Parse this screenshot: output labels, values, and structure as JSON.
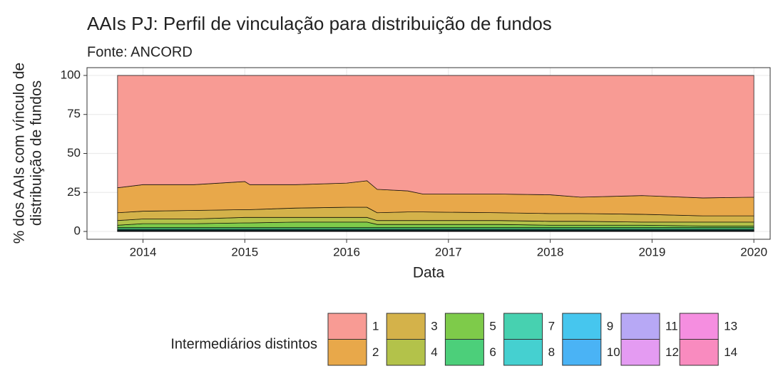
{
  "chart_data": {
    "type": "stacked_area",
    "title": "AAIs PJ: Perfil de vinculação para distribuição de fundos",
    "subtitle": "Fonte: ANCORD",
    "xlabel": "Data",
    "ylabel": [
      "% dos AAIs com vínculo de",
      "distribuição de fundos"
    ],
    "legend_title": "Intermediários distintos",
    "x": [
      2013.75,
      2014.0,
      2014.5,
      2015.0,
      2015.05,
      2015.5,
      2016.0,
      2016.2,
      2016.3,
      2016.6,
      2016.75,
      2017.5,
      2018.0,
      2018.3,
      2018.9,
      2019.5,
      2020.0
    ],
    "xlim": [
      2013.45,
      2020.16
    ],
    "xticks": [
      2014,
      2015,
      2016,
      2017,
      2018,
      2019,
      2020
    ],
    "ylim": [
      -5,
      105
    ],
    "yticks": [
      0,
      25,
      50,
      75,
      100
    ],
    "grid": true,
    "legend": "bottom",
    "series": [
      {
        "name": "1",
        "color": "#f89b94",
        "values": [
          72,
          70,
          70,
          68,
          70,
          70,
          69,
          67.5,
          73,
          74,
          76,
          76,
          76.5,
          78,
          77,
          78.5,
          78
        ]
      },
      {
        "name": "2",
        "color": "#e8a84a",
        "values": [
          16,
          17,
          16.5,
          18,
          16,
          15,
          15.5,
          17,
          15,
          13.5,
          11.5,
          12,
          12,
          10.5,
          12,
          11.5,
          12
        ]
      },
      {
        "name": "3",
        "color": "#d4b24a",
        "values": [
          5,
          5,
          5.5,
          5,
          5,
          6,
          6.5,
          6.5,
          5,
          5.5,
          5.5,
          5,
          5,
          5,
          5,
          4,
          4
        ]
      },
      {
        "name": "4",
        "color": "#b3c24a",
        "values": [
          3,
          3,
          3,
          3.5,
          3.5,
          3,
          3,
          3,
          2.5,
          2.5,
          2.5,
          2.5,
          2.5,
          2.5,
          2,
          2.5,
          2.5
        ]
      },
      {
        "name": "5",
        "color": "#7ecb4a",
        "values": [
          1.5,
          2.5,
          2.5,
          3,
          3,
          3.5,
          3.5,
          3.5,
          2,
          2,
          2,
          2,
          1.5,
          1.5,
          1.5,
          1,
          1
        ]
      },
      {
        "name": "6",
        "color": "#4ccf7a",
        "values": [
          1,
          1,
          1,
          1,
          1,
          1,
          1,
          1,
          1,
          1,
          1,
          1,
          1,
          1,
          1,
          1,
          1
        ]
      },
      {
        "name": "7",
        "color": "#47d1b0",
        "values": [
          0.5,
          0.5,
          0.5,
          0.5,
          0.5,
          0.5,
          0.5,
          0.5,
          0.5,
          0.5,
          0.5,
          0.5,
          0.5,
          0.5,
          0.5,
          0.5,
          0.5
        ]
      },
      {
        "name": "8",
        "color": "#45d0d0",
        "values": [
          0.4,
          0.4,
          0.4,
          0.4,
          0.4,
          0.4,
          0.4,
          0.4,
          0.4,
          0.4,
          0.4,
          0.4,
          0.4,
          0.4,
          0.4,
          0.4,
          0.4
        ]
      },
      {
        "name": "9",
        "color": "#46c6ee",
        "values": [
          0.1,
          0.1,
          0.1,
          0.1,
          0.1,
          0.1,
          0.1,
          0.1,
          0.1,
          0.1,
          0.1,
          0.1,
          0.1,
          0.1,
          0.1,
          0.1,
          0.1
        ]
      },
      {
        "name": "10",
        "color": "#4ab3f5",
        "values": [
          0.1,
          0.1,
          0.1,
          0.1,
          0.1,
          0.1,
          0.1,
          0.1,
          0.1,
          0.1,
          0.1,
          0.1,
          0.1,
          0.1,
          0.1,
          0.1,
          0.1
        ]
      },
      {
        "name": "11",
        "color": "#b7a8f5",
        "values": [
          0.1,
          0.1,
          0.1,
          0.1,
          0.1,
          0.1,
          0.1,
          0.1,
          0.1,
          0.1,
          0.1,
          0.1,
          0.1,
          0.1,
          0.1,
          0.1,
          0.1
        ]
      },
      {
        "name": "12",
        "color": "#e49bf2",
        "values": [
          0.1,
          0.1,
          0.1,
          0.1,
          0.1,
          0.1,
          0.1,
          0.1,
          0.1,
          0.1,
          0.1,
          0.1,
          0.1,
          0.1,
          0.1,
          0.1,
          0.1
        ]
      },
      {
        "name": "13",
        "color": "#f58ee0",
        "values": [
          0.1,
          0.1,
          0.1,
          0.1,
          0.1,
          0.1,
          0.1,
          0.1,
          0.1,
          0.1,
          0.1,
          0.1,
          0.1,
          0.1,
          0.1,
          0.1,
          0.1
        ]
      },
      {
        "name": "14",
        "color": "#f98bbf",
        "values": [
          0.1,
          0.1,
          0.1,
          0.1,
          0.1,
          0.1,
          0.1,
          0.1,
          0.1,
          0.1,
          0.1,
          0.1,
          0.1,
          0.1,
          0.1,
          0.1,
          0.1
        ]
      }
    ]
  }
}
